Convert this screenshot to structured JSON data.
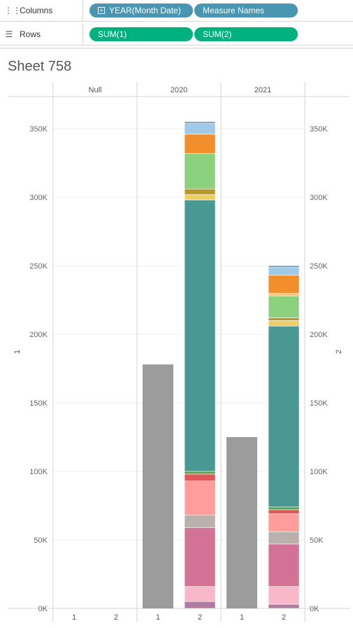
{
  "shelves": {
    "columns": {
      "label": "Columns",
      "icon": "columns-icon",
      "pills": [
        "YEAR(Month Date)",
        "Measure Names"
      ]
    },
    "rows": {
      "label": "Rows",
      "icon": "rows-icon",
      "pills": [
        "SUM(1)",
        "SUM(2)"
      ]
    }
  },
  "sheet": {
    "title": "Sheet 758"
  },
  "colors": {
    "pill_blue": "#4996b2",
    "pill_green": "#00b180",
    "measure_1": "#9c9c9c"
  },
  "chart_data": {
    "type": "bar",
    "stacked": true,
    "dual_axis": true,
    "groups": [
      "Null",
      "2020",
      "2021"
    ],
    "measures": [
      "1",
      "2"
    ],
    "ylabel_left": "1",
    "ylabel_right": "2",
    "ylim": [
      0,
      370000
    ],
    "yticks": [
      0,
      50000,
      100000,
      150000,
      200000,
      250000,
      300000,
      350000
    ],
    "ytick_labels": [
      "0K",
      "50K",
      "100K",
      "150K",
      "200K",
      "250K",
      "300K",
      "350K"
    ],
    "grid": true,
    "measure_1_values": {
      "Null": 0,
      "2020": 178000,
      "2021": 125000
    },
    "measure_2_segments": {
      "Null": [],
      "2020": [
        {
          "color": "#b07aa1",
          "value": 5000
        },
        {
          "color": "#f9b8ca",
          "value": 11000
        },
        {
          "color": "#d37295",
          "value": 43000
        },
        {
          "color": "#bab0ac",
          "value": 9000
        },
        {
          "color": "#ff9d9a",
          "value": 25000
        },
        {
          "color": "#e15759",
          "value": 5000
        },
        {
          "color": "#59a14f",
          "value": 2000
        },
        {
          "color": "#499894",
          "value": 198000
        },
        {
          "color": "#f1ce63",
          "value": 4000
        },
        {
          "color": "#b6992d",
          "value": 4000
        },
        {
          "color": "#8cd17d",
          "value": 26000
        },
        {
          "color": "#f28e2b",
          "value": 14000
        },
        {
          "color": "#a0cbe8",
          "value": 8000
        },
        {
          "color": "#4e79a7",
          "value": 1000
        }
      ],
      "2021": [
        {
          "color": "#b07aa1",
          "value": 3000
        },
        {
          "color": "#f9b8ca",
          "value": 13000
        },
        {
          "color": "#d37295",
          "value": 31000
        },
        {
          "color": "#bab0ac",
          "value": 9000
        },
        {
          "color": "#ff9d9a",
          "value": 13000
        },
        {
          "color": "#e15759",
          "value": 3000
        },
        {
          "color": "#59a14f",
          "value": 2000
        },
        {
          "color": "#499894",
          "value": 132000
        },
        {
          "color": "#f1ce63",
          "value": 4000
        },
        {
          "color": "#b6992d",
          "value": 2000
        },
        {
          "color": "#8cd17d",
          "value": 16000
        },
        {
          "color": "#f7c480",
          "value": 2000
        },
        {
          "color": "#f28e2b",
          "value": 13000
        },
        {
          "color": "#a0cbe8",
          "value": 6000
        },
        {
          "color": "#4e79a7",
          "value": 1000
        }
      ]
    }
  }
}
